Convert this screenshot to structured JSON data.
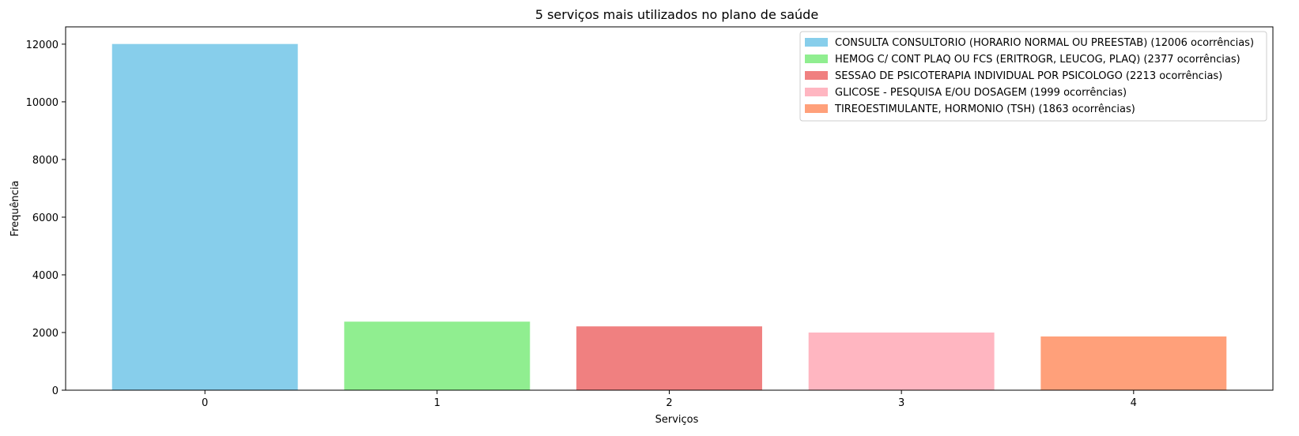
{
  "chart_data": {
    "type": "bar",
    "title": "5 serviços mais utilizados no plano de saúde",
    "xlabel": "Serviços",
    "ylabel": "Frequência",
    "categories": [
      "0",
      "1",
      "2",
      "3",
      "4"
    ],
    "values": [
      12006,
      2377,
      2213,
      1999,
      1863
    ],
    "colors": [
      "#87ceeb",
      "#90ee90",
      "#f08080",
      "#ffb6c1",
      "#ffa07a"
    ],
    "ylim": [
      0,
      12600
    ],
    "yticks": [
      0,
      2000,
      4000,
      6000,
      8000,
      10000,
      12000
    ],
    "grid": false,
    "legend_position": "top-right",
    "legend": [
      "CONSULTA CONSULTORIO (HORARIO NORMAL OU PREESTAB) (12006 ocorrências)",
      "HEMOG C/ CONT PLAQ OU FCS (ERITROGR, LEUCOG, PLAQ) (2377 ocorrências)",
      "SESSAO DE PSICOTERAPIA INDIVIDUAL POR PSICOLOGO (2213 ocorrências)",
      "GLICOSE - PESQUISA E/OU DOSAGEM (1999 ocorrências)",
      "TIREOESTIMULANTE, HORMONIO (TSH) (1863 ocorrências)"
    ]
  }
}
